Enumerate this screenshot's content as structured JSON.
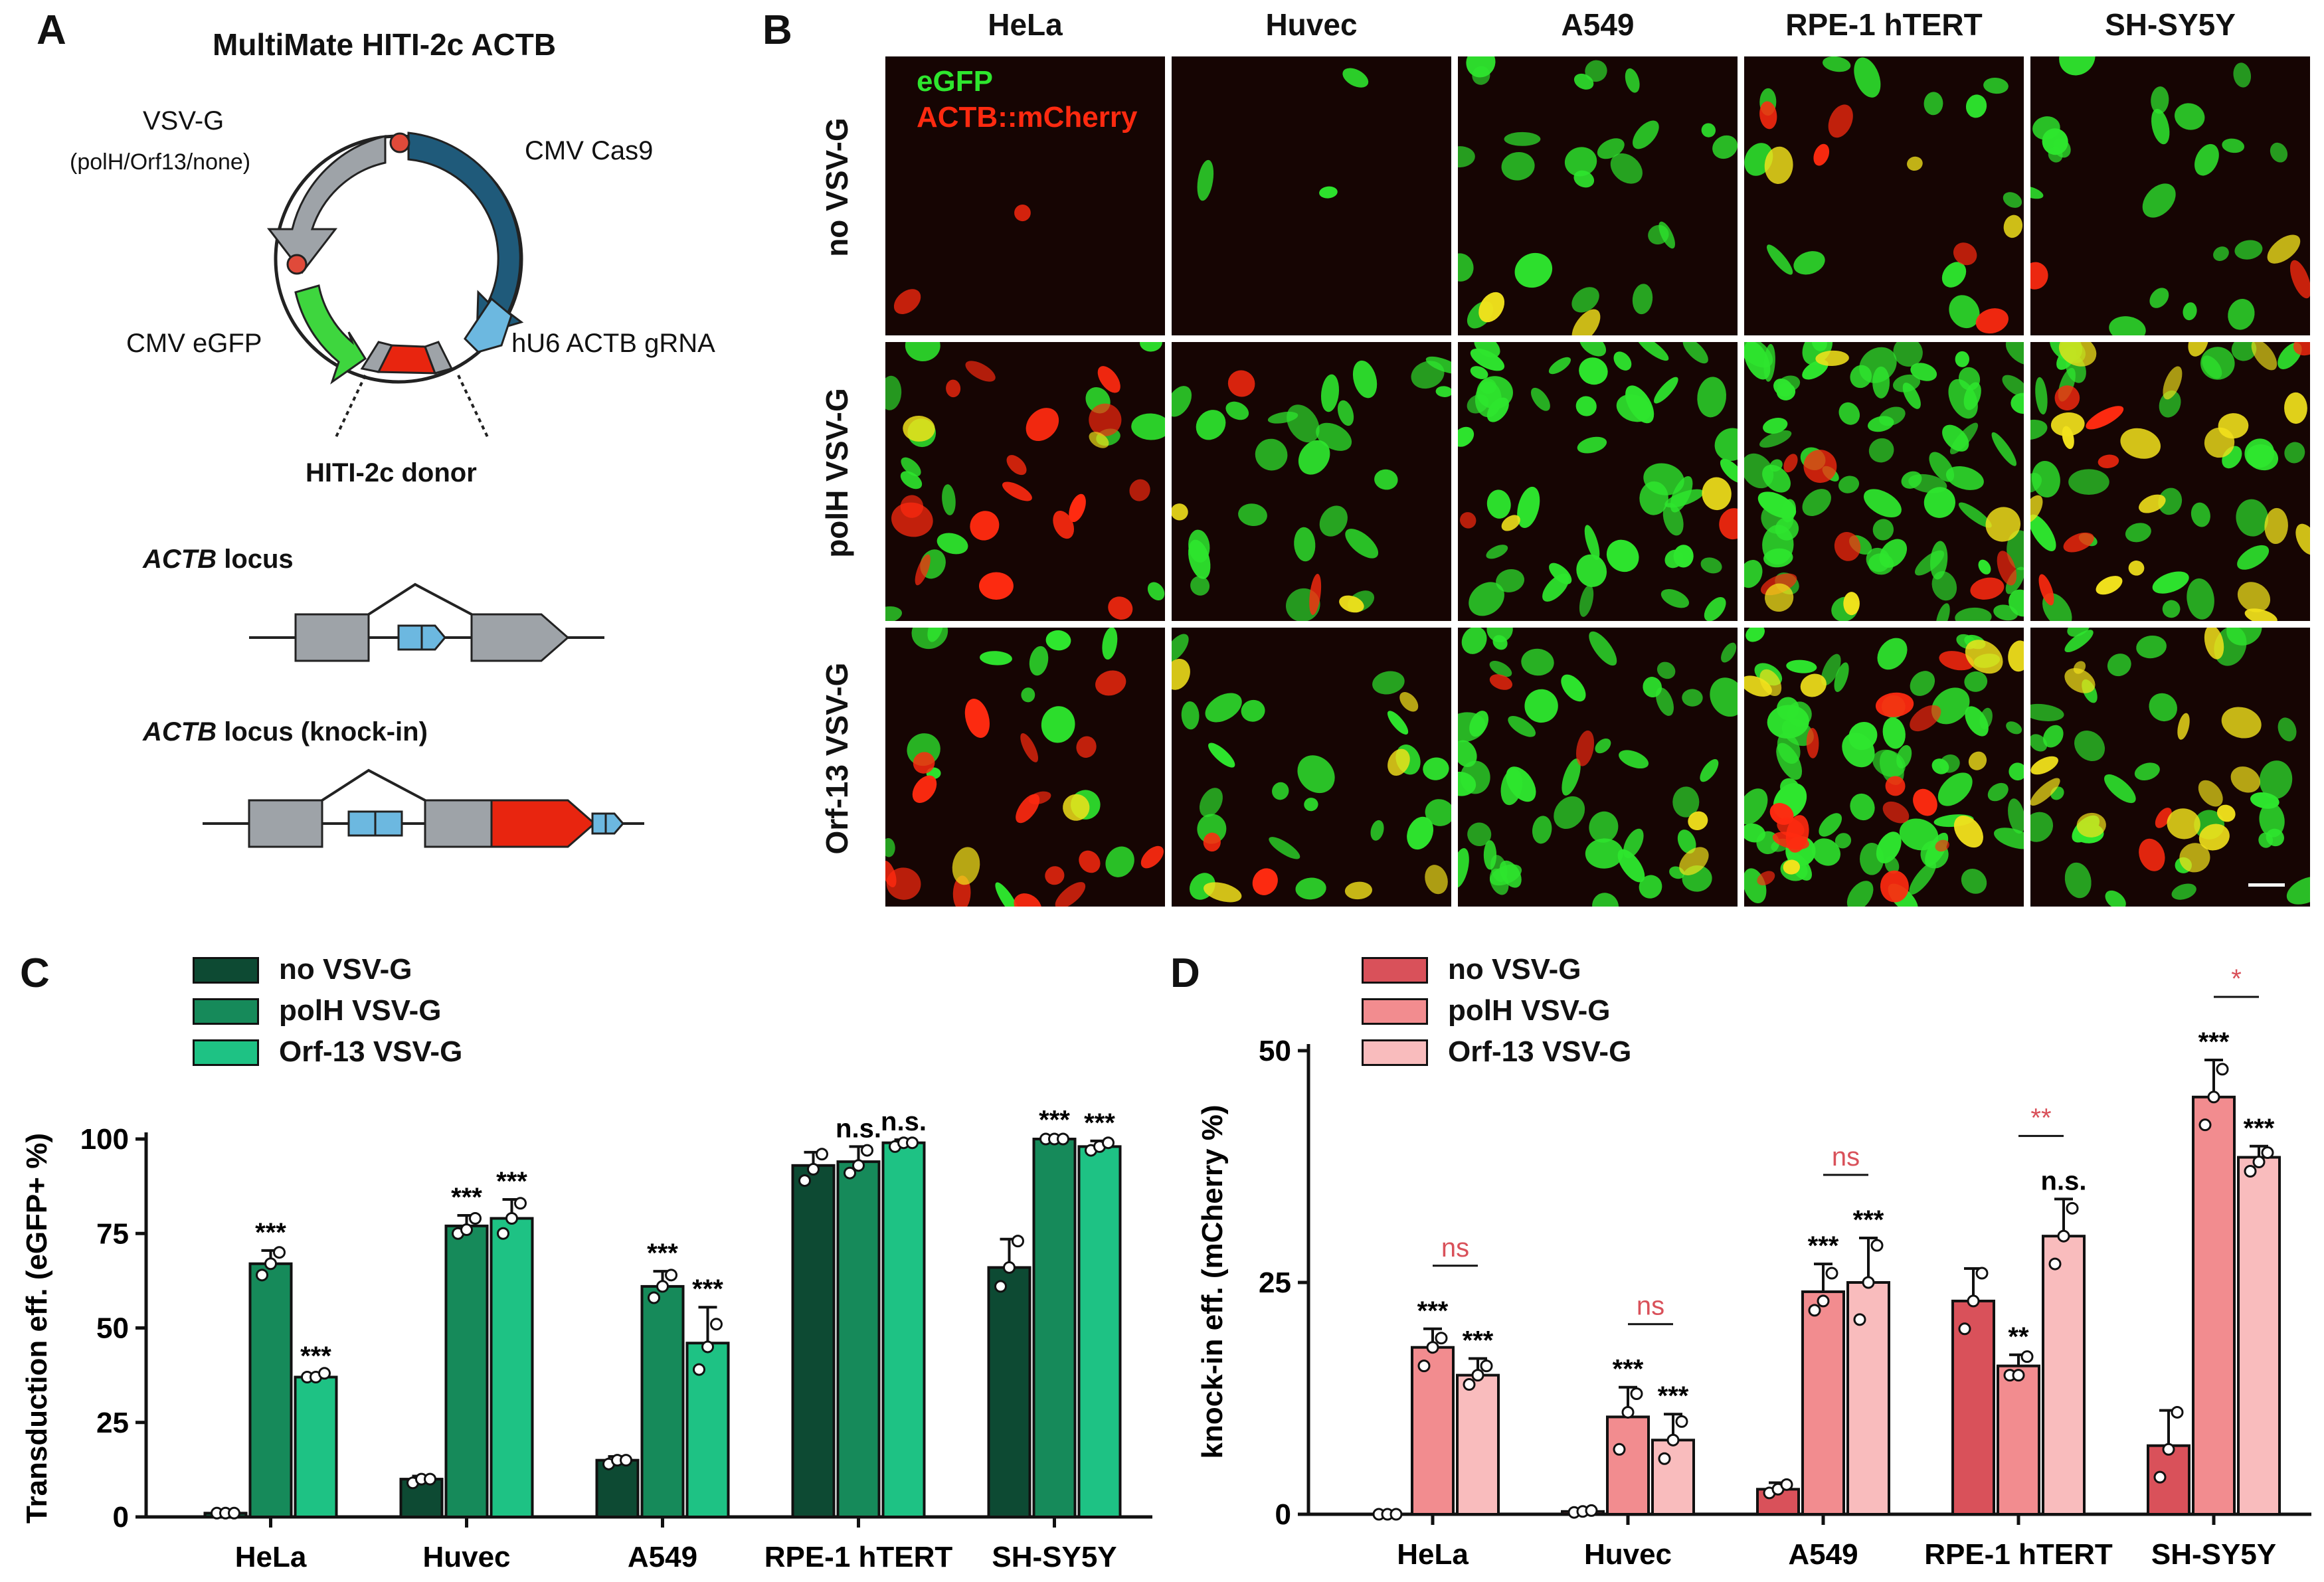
{
  "panels": {
    "A": "A",
    "B": "B",
    "C": "C",
    "D": "D"
  },
  "panelA": {
    "title": "MultiMate HITI-2c ACTB",
    "vsvg": "VSV-G",
    "vsvg_sub": "(polH/Orf13/none)",
    "cmv_cas9": "CMV Cas9",
    "cmv_egfp": "CMV eGFP",
    "hu6": "hU6 ACTB gRNA",
    "donor": "HITI-2c donor",
    "locus1_gene": "ACTB",
    "locus1_suffix": " locus",
    "locus2_gene": "ACTB",
    "locus2_suffix": " locus (knock-in)",
    "colors": {
      "gray": "#9ea3a8",
      "blue": "#1f5a7a",
      "green": "#3ed63e",
      "lightblue": "#6cb8e0",
      "red": "#e8250f",
      "dot": "#e04a3a"
    }
  },
  "panelB": {
    "columns": [
      "HeLa",
      "Huvec",
      "A549",
      "RPE-1 hTERT",
      "SH-SY5Y"
    ],
    "rows": [
      "no VSV-G",
      "polH VSV-G",
      "Orf-13 VSV-G"
    ],
    "overlay_egfp": "eGFP",
    "overlay_mcherry": "ACTB::mCherry",
    "colors": {
      "green": "#2ee62e",
      "red": "#ff2a10"
    }
  },
  "chart_data": [
    {
      "type": "bar",
      "panel": "C",
      "ylabel": "Transduction eff. (eGFP+ %)",
      "xlabel": "",
      "ylim": [
        0,
        100
      ],
      "yticks": [
        0,
        25,
        50,
        75,
        100
      ],
      "categories": [
        "HeLa",
        "Huvec",
        "A549",
        "RPE-1 hTERT",
        "SH-SY5Y"
      ],
      "series": [
        {
          "name": "no VSV-G",
          "color": "#0d4a33",
          "values": [
            1,
            10,
            15,
            93,
            66
          ],
          "errors": [
            0.2,
            0.8,
            1.0,
            3.5,
            7.5
          ],
          "points": [
            [
              1,
              1,
              1
            ],
            [
              9,
              10,
              10
            ],
            [
              14,
              15,
              15
            ],
            [
              89,
              92,
              96
            ],
            [
              61,
              66,
              73
            ]
          ],
          "sig": [
            "",
            "",
            "",
            "",
            ""
          ]
        },
        {
          "name": "polH VSV-G",
          "color": "#168a5a",
          "values": [
            67,
            77,
            61,
            94,
            100
          ],
          "errors": [
            3.5,
            2.8,
            4.0,
            4.0,
            0.3
          ],
          "points": [
            [
              64,
              67,
              70
            ],
            [
              75,
              76,
              79
            ],
            [
              58,
              61,
              64
            ],
            [
              91,
              93,
              97
            ],
            [
              100,
              100,
              100
            ]
          ],
          "sig": [
            "***",
            "***",
            "***",
            "n.s.",
            "***"
          ]
        },
        {
          "name": "Orf-13 VSV-G",
          "color": "#1ec284",
          "values": [
            37,
            79,
            46,
            99,
            98
          ],
          "errors": [
            0.8,
            5.0,
            9.5,
            0.8,
            1.5
          ],
          "points": [
            [
              37,
              37,
              38
            ],
            [
              75,
              79,
              83
            ],
            [
              39,
              45,
              51
            ],
            [
              98,
              99,
              99
            ],
            [
              97,
              98,
              99
            ]
          ],
          "sig": [
            "***",
            "***",
            "***",
            "n.s.",
            "***"
          ]
        }
      ],
      "legend": "top-left"
    },
    {
      "type": "bar",
      "panel": "D",
      "ylabel": "knock-in eff. (mCherry %)",
      "xlabel": "",
      "ylim": [
        0,
        50
      ],
      "yticks": [
        0,
        25,
        50
      ],
      "categories": [
        "HeLa",
        "Huvec",
        "A549",
        "RPE-1 hTERT",
        "SH-SY5Y"
      ],
      "series": [
        {
          "name": "no VSV-G",
          "color": "#d9515a",
          "values": [
            0,
            0.3,
            2.7,
            23,
            7.4
          ],
          "errors": [
            0.1,
            0.2,
            0.7,
            3.5,
            3.8
          ],
          "points": [
            [
              0,
              0,
              0
            ],
            [
              0.2,
              0.3,
              0.4
            ],
            [
              2.3,
              2.7,
              3.2
            ],
            [
              20,
              23,
              26
            ],
            [
              4,
              7,
              11
            ]
          ],
          "sig": [
            "",
            "",
            "",
            "",
            ""
          ]
        },
        {
          "name": "polH VSV-G",
          "color": "#f28c8f",
          "values": [
            18,
            10.5,
            24,
            16,
            45
          ],
          "errors": [
            2.0,
            3.2,
            3.0,
            1.2,
            4.0
          ],
          "points": [
            [
              16,
              18,
              19
            ],
            [
              7,
              11,
              13
            ],
            [
              22,
              23,
              26
            ],
            [
              15,
              15,
              17
            ],
            [
              42,
              45,
              48
            ]
          ],
          "sig": [
            "***",
            "***",
            "***",
            "**",
            "***"
          ]
        },
        {
          "name": "Orf-13 VSV-G",
          "color": "#f9bcbd",
          "values": [
            15,
            8,
            25,
            30,
            38.5
          ],
          "errors": [
            1.8,
            2.8,
            4.8,
            4.0,
            1.2
          ],
          "points": [
            [
              14,
              15,
              16
            ],
            [
              6,
              8,
              10
            ],
            [
              21,
              25,
              29
            ],
            [
              27,
              30,
              33
            ],
            [
              37,
              38,
              39
            ]
          ],
          "sig": [
            "***",
            "***",
            "***",
            "n.s.",
            "***"
          ]
        }
      ],
      "pair_sig": [
        {
          "category": 0,
          "label": "ns",
          "color": "#d9515a"
        },
        {
          "category": 1,
          "label": "ns",
          "color": "#d9515a"
        },
        {
          "category": 2,
          "label": "ns",
          "color": "#d9515a"
        },
        {
          "category": 3,
          "label": "**",
          "color": "#d9515a"
        },
        {
          "category": 4,
          "label": "*",
          "color": "#d9515a"
        }
      ],
      "legend": "top-left"
    }
  ]
}
